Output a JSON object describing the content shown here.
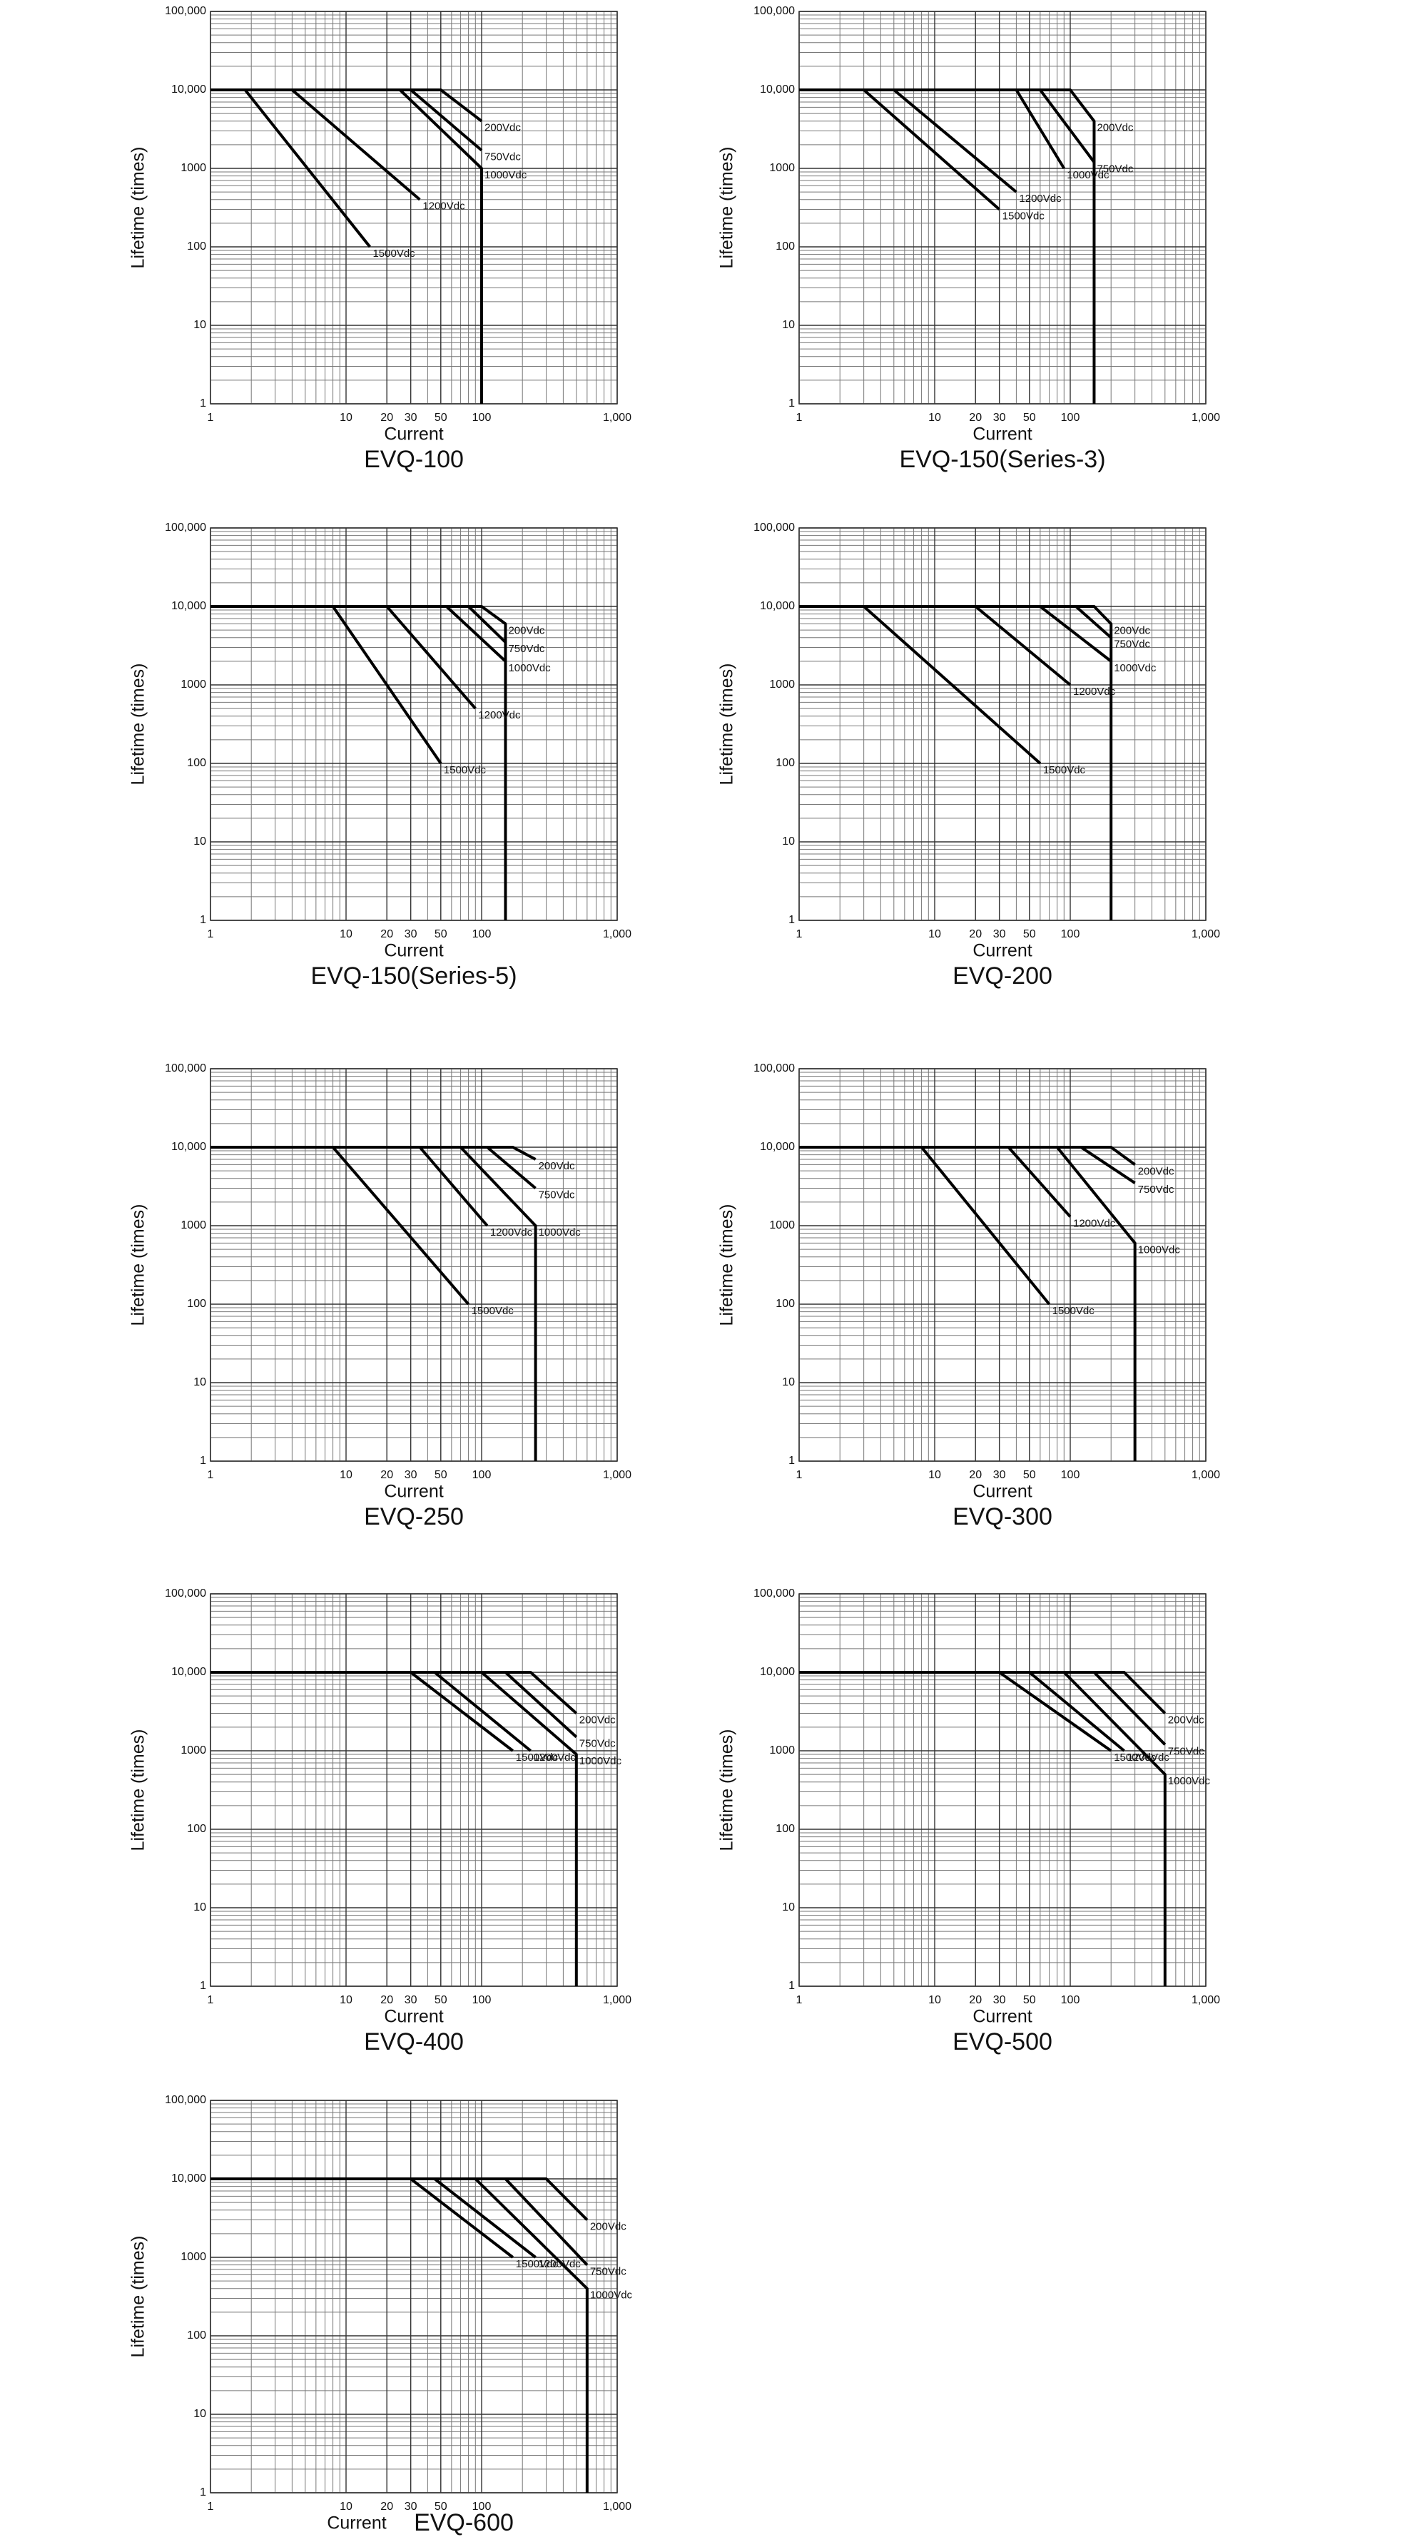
{
  "chart_data": [
    {
      "type": "line",
      "title": "EVQ-100",
      "xlabel": "Current",
      "ylabel": "Lifetime (times)",
      "xscale": "log",
      "yscale": "log",
      "grid": true,
      "minor_grid": true,
      "xlim": [
        1,
        1000
      ],
      "ylim": [
        1,
        100000
      ],
      "xticks": [
        1,
        10,
        20,
        30,
        50,
        100,
        {
          "value": 1000,
          "label": "1,000"
        }
      ],
      "yticks": [
        1,
        10,
        100,
        1000,
        {
          "value": 10000,
          "label": "10,000"
        },
        {
          "value": 100000,
          "label": "100,000"
        }
      ],
      "series": [
        {
          "name": "200Vdc",
          "color": "#000000",
          "x": [
            1,
            50,
            100
          ],
          "values": [
            10000,
            10000,
            4000
          ]
        },
        {
          "name": "750Vdc",
          "color": "#000000",
          "x": [
            1,
            30,
            100
          ],
          "values": [
            10000,
            10000,
            1700
          ]
        },
        {
          "name": "1000Vdc",
          "color": "#000000",
          "x": [
            1,
            25,
            100,
            100
          ],
          "values": [
            10000,
            10000,
            1000,
            1
          ]
        },
        {
          "name": "1200Vdc",
          "color": "#000000",
          "x": [
            1,
            4,
            35
          ],
          "values": [
            10000,
            10000,
            400
          ]
        },
        {
          "name": "1500Vdc",
          "color": "#000000",
          "x": [
            1,
            1.8,
            15
          ],
          "values": [
            10000,
            10000,
            100
          ]
        }
      ]
    },
    {
      "type": "line",
      "title": "EVQ-150(Series-3)",
      "xlabel": "Current",
      "ylabel": "Lifetime (times)",
      "xscale": "log",
      "yscale": "log",
      "grid": true,
      "minor_grid": true,
      "xlim": [
        1,
        1000
      ],
      "ylim": [
        1,
        100000
      ],
      "xticks": [
        1,
        10,
        20,
        30,
        50,
        100,
        {
          "value": 1000,
          "label": "1,000"
        }
      ],
      "yticks": [
        1,
        10,
        100,
        1000,
        {
          "value": 10000,
          "label": "10,000"
        },
        {
          "value": 100000,
          "label": "100,000"
        }
      ],
      "series": [
        {
          "name": "200Vdc",
          "color": "#000000",
          "x": [
            1,
            100,
            150,
            150
          ],
          "values": [
            10000,
            10000,
            4000,
            1
          ]
        },
        {
          "name": "750Vdc",
          "color": "#000000",
          "x": [
            1,
            60,
            150
          ],
          "values": [
            10000,
            10000,
            1200
          ]
        },
        {
          "name": "1000Vdc",
          "color": "#000000",
          "x": [
            1,
            40,
            90
          ],
          "values": [
            10000,
            10000,
            1000
          ]
        },
        {
          "name": "1200Vdc",
          "color": "#000000",
          "x": [
            1,
            5,
            40
          ],
          "values": [
            10000,
            10000,
            500
          ]
        },
        {
          "name": "1500Vdc",
          "color": "#000000",
          "x": [
            1,
            3,
            30
          ],
          "values": [
            10000,
            10000,
            300
          ]
        }
      ]
    },
    {
      "type": "line",
      "title": "EVQ-150(Series-5)",
      "xlabel": "Current",
      "ylabel": "Lifetime (times)",
      "xscale": "log",
      "yscale": "log",
      "grid": true,
      "minor_grid": true,
      "xlim": [
        1,
        1000
      ],
      "ylim": [
        1,
        100000
      ],
      "xticks": [
        1,
        10,
        20,
        30,
        50,
        100,
        {
          "value": 1000,
          "label": "1,000"
        }
      ],
      "yticks": [
        1,
        10,
        100,
        1000,
        {
          "value": 10000,
          "label": "10,000"
        },
        {
          "value": 100000,
          "label": "100,000"
        }
      ],
      "series": [
        {
          "name": "200Vdc",
          "color": "#000000",
          "x": [
            1,
            100,
            150,
            150
          ],
          "values": [
            10000,
            10000,
            6000,
            1
          ]
        },
        {
          "name": "750Vdc",
          "color": "#000000",
          "x": [
            1,
            80,
            150
          ],
          "values": [
            10000,
            10000,
            3500
          ]
        },
        {
          "name": "1000Vdc",
          "color": "#000000",
          "x": [
            1,
            55,
            150
          ],
          "values": [
            10000,
            10000,
            2000
          ]
        },
        {
          "name": "1200Vdc",
          "color": "#000000",
          "x": [
            1,
            20,
            90
          ],
          "values": [
            10000,
            10000,
            500
          ]
        },
        {
          "name": "1500Vdc",
          "color": "#000000",
          "x": [
            1,
            8,
            50
          ],
          "values": [
            10000,
            10000,
            100
          ]
        }
      ]
    },
    {
      "type": "line",
      "title": "EVQ-200",
      "xlabel": "Current",
      "ylabel": "Lifetime (times)",
      "xscale": "log",
      "yscale": "log",
      "grid": true,
      "minor_grid": true,
      "xlim": [
        1,
        1000
      ],
      "ylim": [
        1,
        100000
      ],
      "xticks": [
        1,
        10,
        20,
        30,
        50,
        100,
        {
          "value": 1000,
          "label": "1,000"
        }
      ],
      "yticks": [
        1,
        10,
        100,
        1000,
        {
          "value": 10000,
          "label": "10,000"
        },
        {
          "value": 100000,
          "label": "100,000"
        }
      ],
      "series": [
        {
          "name": "200Vdc",
          "color": "#000000",
          "x": [
            1,
            150,
            200,
            200
          ],
          "values": [
            10000,
            10000,
            6000,
            1
          ]
        },
        {
          "name": "750Vdc",
          "color": "#000000",
          "x": [
            1,
            110,
            200
          ],
          "values": [
            10000,
            10000,
            4000
          ]
        },
        {
          "name": "1000Vdc",
          "color": "#000000",
          "x": [
            1,
            60,
            200
          ],
          "values": [
            10000,
            10000,
            2000
          ]
        },
        {
          "name": "1200Vdc",
          "color": "#000000",
          "x": [
            1,
            20,
            100
          ],
          "values": [
            10000,
            10000,
            1000
          ]
        },
        {
          "name": "1500Vdc",
          "color": "#000000",
          "x": [
            1,
            3,
            60
          ],
          "values": [
            10000,
            10000,
            100
          ]
        }
      ]
    },
    {
      "type": "line",
      "title": "EVQ-250",
      "xlabel": "Current",
      "ylabel": "Lifetime (times)",
      "xscale": "log",
      "yscale": "log",
      "grid": true,
      "minor_grid": true,
      "xlim": [
        1,
        1000
      ],
      "ylim": [
        1,
        100000
      ],
      "xticks": [
        1,
        10,
        20,
        30,
        50,
        100,
        {
          "value": 1000,
          "label": "1,000"
        }
      ],
      "yticks": [
        1,
        10,
        100,
        1000,
        {
          "value": 10000,
          "label": "10,000"
        },
        {
          "value": 100000,
          "label": "100,000"
        }
      ],
      "series": [
        {
          "name": "200Vdc",
          "color": "#000000",
          "x": [
            1,
            170,
            250
          ],
          "values": [
            10000,
            10000,
            7000
          ]
        },
        {
          "name": "750Vdc",
          "color": "#000000",
          "x": [
            1,
            110,
            250
          ],
          "values": [
            10000,
            10000,
            3000
          ]
        },
        {
          "name": "1000Vdc",
          "color": "#000000",
          "x": [
            1,
            70,
            250,
            250
          ],
          "values": [
            10000,
            10000,
            1000,
            1
          ]
        },
        {
          "name": "1200Vdc",
          "color": "#000000",
          "x": [
            1,
            35,
            110
          ],
          "values": [
            10000,
            10000,
            1000
          ]
        },
        {
          "name": "1500Vdc",
          "color": "#000000",
          "x": [
            1,
            8,
            80
          ],
          "values": [
            10000,
            10000,
            100
          ]
        }
      ]
    },
    {
      "type": "line",
      "title": "EVQ-300",
      "xlabel": "Current",
      "ylabel": "Lifetime (times)",
      "xscale": "log",
      "yscale": "log",
      "grid": true,
      "minor_grid": true,
      "xlim": [
        1,
        1000
      ],
      "ylim": [
        1,
        100000
      ],
      "xticks": [
        1,
        10,
        20,
        30,
        50,
        100,
        {
          "value": 1000,
          "label": "1,000"
        }
      ],
      "yticks": [
        1,
        10,
        100,
        1000,
        {
          "value": 10000,
          "label": "10,000"
        },
        {
          "value": 100000,
          "label": "100,000"
        }
      ],
      "series": [
        {
          "name": "200Vdc",
          "color": "#000000",
          "x": [
            1,
            200,
            300
          ],
          "values": [
            10000,
            10000,
            6000
          ]
        },
        {
          "name": "750Vdc",
          "color": "#000000",
          "x": [
            1,
            120,
            300
          ],
          "values": [
            10000,
            10000,
            3500
          ]
        },
        {
          "name": "1000Vdc",
          "color": "#000000",
          "x": [
            1,
            80,
            300,
            300
          ],
          "values": [
            10000,
            10000,
            600,
            1
          ]
        },
        {
          "name": "1200Vdc",
          "color": "#000000",
          "x": [
            1,
            35,
            100
          ],
          "values": [
            10000,
            10000,
            1300
          ]
        },
        {
          "name": "1500Vdc",
          "color": "#000000",
          "x": [
            1,
            8,
            70
          ],
          "values": [
            10000,
            10000,
            100
          ]
        }
      ]
    },
    {
      "type": "line",
      "title": "EVQ-400",
      "xlabel": "Current",
      "ylabel": "Lifetime (times)",
      "xscale": "log",
      "yscale": "log",
      "grid": true,
      "minor_grid": true,
      "xlim": [
        1,
        1000
      ],
      "ylim": [
        1,
        100000
      ],
      "xticks": [
        1,
        10,
        20,
        30,
        50,
        100,
        {
          "value": 1000,
          "label": "1,000"
        }
      ],
      "yticks": [
        1,
        10,
        100,
        1000,
        {
          "value": 10000,
          "label": "10,000"
        },
        {
          "value": 100000,
          "label": "100,000"
        }
      ],
      "series": [
        {
          "name": "200Vdc",
          "color": "#000000",
          "x": [
            1,
            230,
            500
          ],
          "values": [
            10000,
            10000,
            3000
          ]
        },
        {
          "name": "750Vdc",
          "color": "#000000",
          "x": [
            1,
            150,
            500
          ],
          "values": [
            10000,
            10000,
            1500
          ]
        },
        {
          "name": "1000Vdc",
          "color": "#000000",
          "x": [
            1,
            100,
            500,
            500
          ],
          "values": [
            10000,
            10000,
            900,
            1
          ]
        },
        {
          "name": "1200Vdc",
          "color": "#000000",
          "x": [
            1,
            45,
            230
          ],
          "values": [
            10000,
            10000,
            1000
          ]
        },
        {
          "name": "1500Vdc",
          "color": "#000000",
          "x": [
            1,
            30,
            170
          ],
          "values": [
            10000,
            10000,
            1000
          ]
        }
      ]
    },
    {
      "type": "line",
      "title": "EVQ-500",
      "xlabel": "Current",
      "ylabel": "Lifetime (times)",
      "xscale": "log",
      "yscale": "log",
      "grid": true,
      "minor_grid": true,
      "xlim": [
        1,
        1000
      ],
      "ylim": [
        1,
        100000
      ],
      "xticks": [
        1,
        10,
        20,
        30,
        50,
        100,
        {
          "value": 1000,
          "label": "1,000"
        }
      ],
      "yticks": [
        1,
        10,
        100,
        1000,
        {
          "value": 10000,
          "label": "10,000"
        },
        {
          "value": 100000,
          "label": "100,000"
        }
      ],
      "series": [
        {
          "name": "200Vdc",
          "color": "#000000",
          "x": [
            1,
            250,
            500
          ],
          "values": [
            10000,
            10000,
            3000
          ]
        },
        {
          "name": "750Vdc",
          "color": "#000000",
          "x": [
            1,
            150,
            500
          ],
          "values": [
            10000,
            10000,
            1200
          ]
        },
        {
          "name": "1000Vdc",
          "color": "#000000",
          "x": [
            1,
            90,
            500,
            500
          ],
          "values": [
            10000,
            10000,
            500,
            1
          ]
        },
        {
          "name": "1200Vdc",
          "color": "#000000",
          "x": [
            1,
            50,
            250
          ],
          "values": [
            10000,
            10000,
            1000
          ]
        },
        {
          "name": "1500Vdc",
          "color": "#000000",
          "x": [
            1,
            30,
            200
          ],
          "values": [
            10000,
            10000,
            1000
          ]
        }
      ]
    },
    {
      "type": "line",
      "title": "EVQ-600",
      "xlabel": "Current",
      "ylabel": "Lifetime (times)",
      "xscale": "log",
      "yscale": "log",
      "grid": true,
      "minor_grid": true,
      "xlim": [
        1,
        1000
      ],
      "ylim": [
        1,
        100000
      ],
      "xticks": [
        1,
        10,
        20,
        30,
        50,
        100,
        {
          "value": 1000,
          "label": "1,000"
        }
      ],
      "yticks": [
        1,
        10,
        100,
        1000,
        {
          "value": 10000,
          "label": "10,000"
        },
        {
          "value": 100000,
          "label": "100,000"
        }
      ],
      "series": [
        {
          "name": "200Vdc",
          "color": "#000000",
          "x": [
            1,
            300,
            600
          ],
          "values": [
            10000,
            10000,
            3000
          ]
        },
        {
          "name": "750Vdc",
          "color": "#000000",
          "x": [
            1,
            150,
            600
          ],
          "values": [
            10000,
            10000,
            800
          ]
        },
        {
          "name": "1000Vdc",
          "color": "#000000",
          "x": [
            1,
            90,
            600,
            600
          ],
          "values": [
            10000,
            10000,
            400,
            1
          ]
        },
        {
          "name": "1200Vdc",
          "color": "#000000",
          "x": [
            1,
            45,
            250
          ],
          "values": [
            10000,
            10000,
            1000
          ]
        },
        {
          "name": "1500Vdc",
          "color": "#000000",
          "x": [
            1,
            30,
            170
          ],
          "values": [
            10000,
            10000,
            1000
          ]
        }
      ]
    }
  ]
}
